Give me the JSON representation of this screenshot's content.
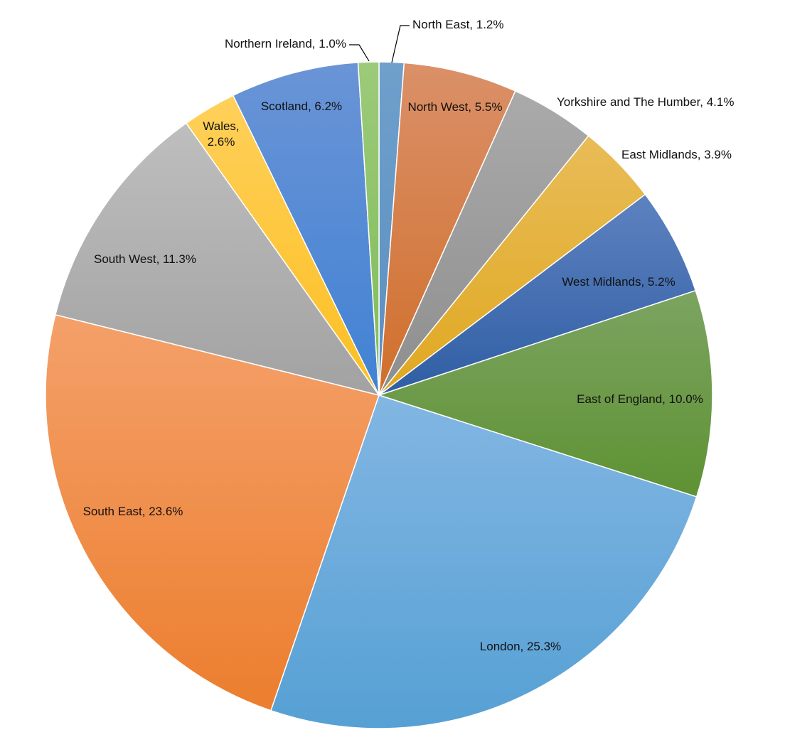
{
  "chart_data": {
    "type": "pie",
    "title": "",
    "legend": "none",
    "slices": [
      {
        "label": "North East, 1.2%",
        "name": "North East",
        "value": 1.2,
        "color": "#6FA0CC",
        "color2": "#5B8EC0"
      },
      {
        "label": "North West, 5.5%",
        "name": "North West",
        "value": 5.5,
        "color": "#DB9068",
        "color2": "#D06F2C"
      },
      {
        "label": "Yorkshire and The Humber, 4.1%",
        "name": "Yorkshire and The Humber",
        "value": 4.1,
        "color": "#AAAAAA",
        "color2": "#8E8E8E"
      },
      {
        "label": "East Midlands, 3.9%",
        "name": "East Midlands",
        "value": 3.9,
        "color": "#E8BC58",
        "color2": "#E0A820"
      },
      {
        "label": "West Midlands, 5.2%",
        "name": "West Midlands",
        "value": 5.2,
        "color": "#5E82C0",
        "color2": "#2F5EA4"
      },
      {
        "label": "East of England, 10.0%",
        "name": "East of England",
        "value": 10.0,
        "color": "#7CA461",
        "color2": "#5E9233"
      },
      {
        "label": "London, 25.3%",
        "name": "London",
        "value": 25.3,
        "color": "#82B6E3",
        "color2": "#56A0D4"
      },
      {
        "label": "South East, 23.6%",
        "name": "South East",
        "value": 23.6,
        "color": "#F4A06A",
        "color2": "#EC7E2E"
      },
      {
        "label": "South West, 11.3%",
        "name": "South West",
        "value": 11.3,
        "color": "#BEBEBE",
        "color2": "#A2A2A2"
      },
      {
        "label": "Wales,\n2.6%",
        "name": "Wales",
        "value": 2.6,
        "color": "#FFD05A",
        "color2": "#FCBF22"
      },
      {
        "label": "Scotland, 6.2%",
        "name": "Scotland",
        "value": 6.2,
        "color": "#6A94D6",
        "color2": "#4182D4"
      },
      {
        "label": "Northern Ireland, 1.0%",
        "name": "Northern Ireland",
        "value": 1.0,
        "color": "#9CCA7A",
        "color2": "#80BC58"
      }
    ]
  }
}
